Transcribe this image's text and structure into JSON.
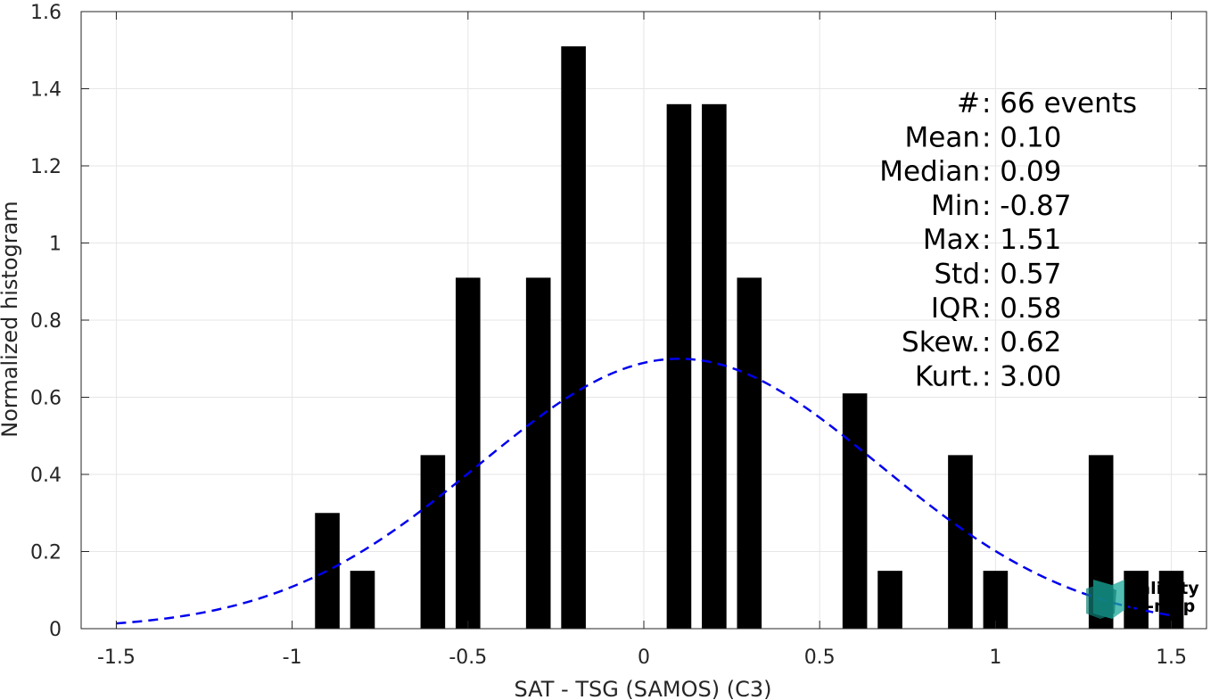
{
  "chart_data": {
    "type": "bar",
    "xlabel": "SAT - TSG (SAMOS) (C3)",
    "ylabel": "Normalized histogram",
    "xlim": [
      -1.6,
      1.6
    ],
    "ylim": [
      0,
      1.6
    ],
    "xticks": [
      -1.5,
      -1,
      -0.5,
      0,
      0.5,
      1,
      1.5
    ],
    "xtick_labels": [
      "-1.5",
      "-1",
      "-0.5",
      "0",
      "0.5",
      "1",
      "1.5"
    ],
    "yticks": [
      0,
      0.2,
      0.4,
      0.6,
      0.8,
      1,
      1.2,
      1.4,
      1.6
    ],
    "ytick_labels": [
      "0",
      "0.2",
      "0.4",
      "0.6",
      "0.8",
      "1",
      "1.2",
      "1.4",
      "1.6"
    ],
    "grid": true,
    "bin_width": 0.1,
    "bars": [
      {
        "x": -0.9,
        "y": 0.3
      },
      {
        "x": -0.8,
        "y": 0.15
      },
      {
        "x": -0.6,
        "y": 0.45
      },
      {
        "x": -0.5,
        "y": 0.91
      },
      {
        "x": -0.3,
        "y": 0.91
      },
      {
        "x": -0.2,
        "y": 1.51
      },
      {
        "x": 0.1,
        "y": 1.36
      },
      {
        "x": 0.2,
        "y": 1.36
      },
      {
        "x": 0.3,
        "y": 0.91
      },
      {
        "x": 0.6,
        "y": 0.61
      },
      {
        "x": 0.7,
        "y": 0.15
      },
      {
        "x": 0.9,
        "y": 0.45
      },
      {
        "x": 1.0,
        "y": 0.15
      },
      {
        "x": 1.3,
        "y": 0.45
      },
      {
        "x": 1.4,
        "y": 0.15
      },
      {
        "x": 1.5,
        "y": 0.15
      }
    ],
    "bar_color": "#000000",
    "fit_curve": {
      "type": "gaussian",
      "mean": 0.1,
      "std": 0.57,
      "x_range": [
        -1.5,
        1.5
      ],
      "color": "#0000ee",
      "style": "dashed"
    },
    "stats": [
      {
        "label": "#",
        "sep": " : ",
        "value": "66 events"
      },
      {
        "label": "Mean",
        "sep": " : ",
        "value": "0.10"
      },
      {
        "label": "Median",
        "sep": " : ",
        "value": "0.09"
      },
      {
        "label": "Min",
        "sep": " : ",
        "value": "-0.87"
      },
      {
        "label": "Max",
        "sep": " : ",
        "value": "1.51"
      },
      {
        "label": "Std",
        "sep": " : ",
        "value": "0.57"
      },
      {
        "label": "IQR",
        "sep": " : ",
        "value": "0.58"
      },
      {
        "label": "Skew.",
        "sep": " : ",
        "value": "0.62"
      },
      {
        "label": "Kurt.",
        "sep": " : ",
        "value": "3.00"
      }
    ]
  },
  "logo": {
    "line1": "salinity",
    "line2": "pi-mep",
    "color": "#1aa89a"
  }
}
